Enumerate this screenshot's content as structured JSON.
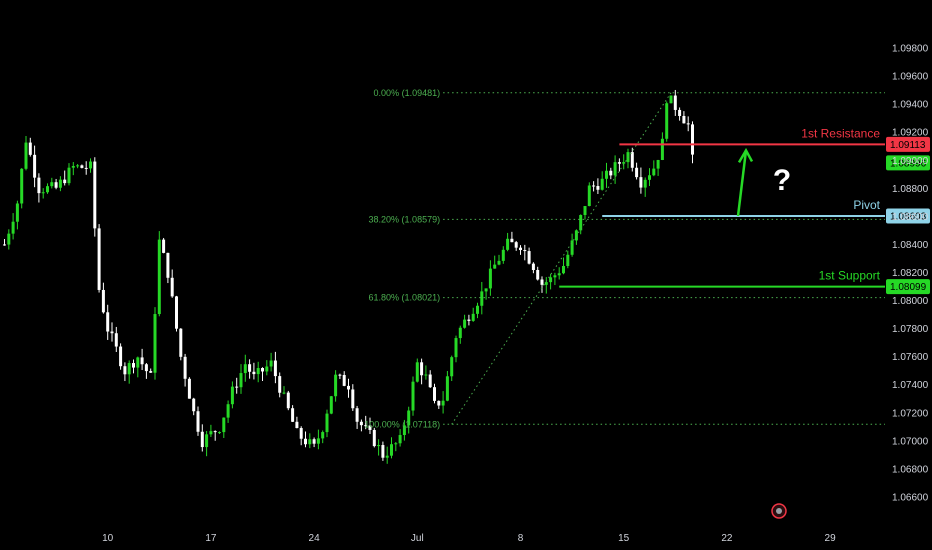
{
  "chart_data": {
    "type": "candlestick",
    "instrument_hint": "",
    "y_axis": {
      "range": [
        1.065,
        1.0995
      ],
      "ticks": [
        "1.09800",
        "1.09600",
        "1.09400",
        "1.09200",
        "1.09000",
        "1.08800",
        "1.08600",
        "1.08400",
        "1.08200",
        "1.08000",
        "1.07800",
        "1.07600",
        "1.07400",
        "1.07200",
        "1.07000",
        "1.06800",
        "1.06600"
      ],
      "tick_values": [
        1.098,
        1.096,
        1.094,
        1.092,
        1.09,
        1.088,
        1.086,
        1.084,
        1.082,
        1.08,
        1.078,
        1.076,
        1.074,
        1.072,
        1.07,
        1.068,
        1.066
      ]
    },
    "x_axis": {
      "labels": [
        "10",
        "17",
        "24",
        "Jul",
        "8",
        "15",
        "22",
        "29"
      ],
      "label_bar_index": [
        24,
        48,
        72,
        96,
        120,
        144,
        168,
        192
      ]
    },
    "fibonacci": [
      {
        "label": "0.00% (1.09481)",
        "value": 1.09481
      },
      {
        "label": "38.20% (1.08579)",
        "value": 1.08579
      },
      {
        "label": "61.80% (1.08021)",
        "value": 1.08021
      },
      {
        "label": "100.00% (1.07118)",
        "value": 1.07118
      }
    ],
    "levels": [
      {
        "name": "1st Resistance",
        "value": 1.09113,
        "tag": "1.09113",
        "color": "#f23645"
      },
      {
        "name": "Pivot",
        "value": 1.08603,
        "tag": "1.08603",
        "color": "#8fd3e8"
      },
      {
        "name": "1st Support",
        "value": 1.08099,
        "tag": "1.08099",
        "color": "#26d926"
      }
    ],
    "current_price": {
      "value": 1.08996,
      "tag": "1.08996",
      "color": "#26d926"
    },
    "annotation": "?",
    "up_color": "#26d926",
    "down_color": "#ffffff",
    "candles_ohlc_anchors": [
      [
        0,
        1.084
      ],
      [
        3,
        1.087
      ],
      [
        5,
        1.0915
      ],
      [
        8,
        1.088
      ],
      [
        12,
        1.088
      ],
      [
        16,
        1.0895
      ],
      [
        20,
        1.0895
      ],
      [
        22,
        1.0808
      ],
      [
        24,
        1.078
      ],
      [
        28,
        1.075
      ],
      [
        31,
        1.076
      ],
      [
        34,
        1.0745
      ],
      [
        36,
        1.0842
      ],
      [
        38,
        1.082
      ],
      [
        41,
        1.076
      ],
      [
        44,
        1.072
      ],
      [
        46,
        1.07
      ],
      [
        50,
        1.071
      ],
      [
        53,
        1.0735
      ],
      [
        56,
        1.0755
      ],
      [
        58,
        1.0745
      ],
      [
        62,
        1.0755
      ],
      [
        65,
        1.073
      ],
      [
        68,
        1.0705
      ],
      [
        72,
        1.0695
      ],
      [
        74,
        1.071
      ],
      [
        77,
        1.0745
      ],
      [
        80,
        1.074
      ],
      [
        82,
        1.0715
      ],
      [
        86,
        1.07
      ],
      [
        88,
        1.069
      ],
      [
        92,
        1.07
      ],
      [
        94,
        1.0725
      ],
      [
        96,
        1.0755
      ],
      [
        98,
        1.0745
      ],
      [
        100,
        1.0725
      ],
      [
        102,
        1.073
      ],
      [
        105,
        1.0775
      ],
      [
        108,
        1.079
      ],
      [
        111,
        1.0805
      ],
      [
        114,
        1.0825
      ],
      [
        117,
        1.084
      ],
      [
        120,
        1.084
      ],
      [
        123,
        1.0825
      ],
      [
        125,
        1.0812
      ],
      [
        127,
        1.0815
      ],
      [
        130,
        1.0825
      ],
      [
        133,
        1.0848
      ],
      [
        136,
        1.088
      ],
      [
        139,
        1.0885
      ],
      [
        142,
        1.0895
      ],
      [
        145,
        1.0905
      ],
      [
        148,
        1.0885
      ],
      [
        151,
        1.0895
      ],
      [
        153,
        1.0912
      ],
      [
        154,
        1.0945
      ],
      [
        157,
        1.0935
      ],
      [
        159,
        1.0925
      ],
      [
        160,
        1.09
      ]
    ]
  }
}
